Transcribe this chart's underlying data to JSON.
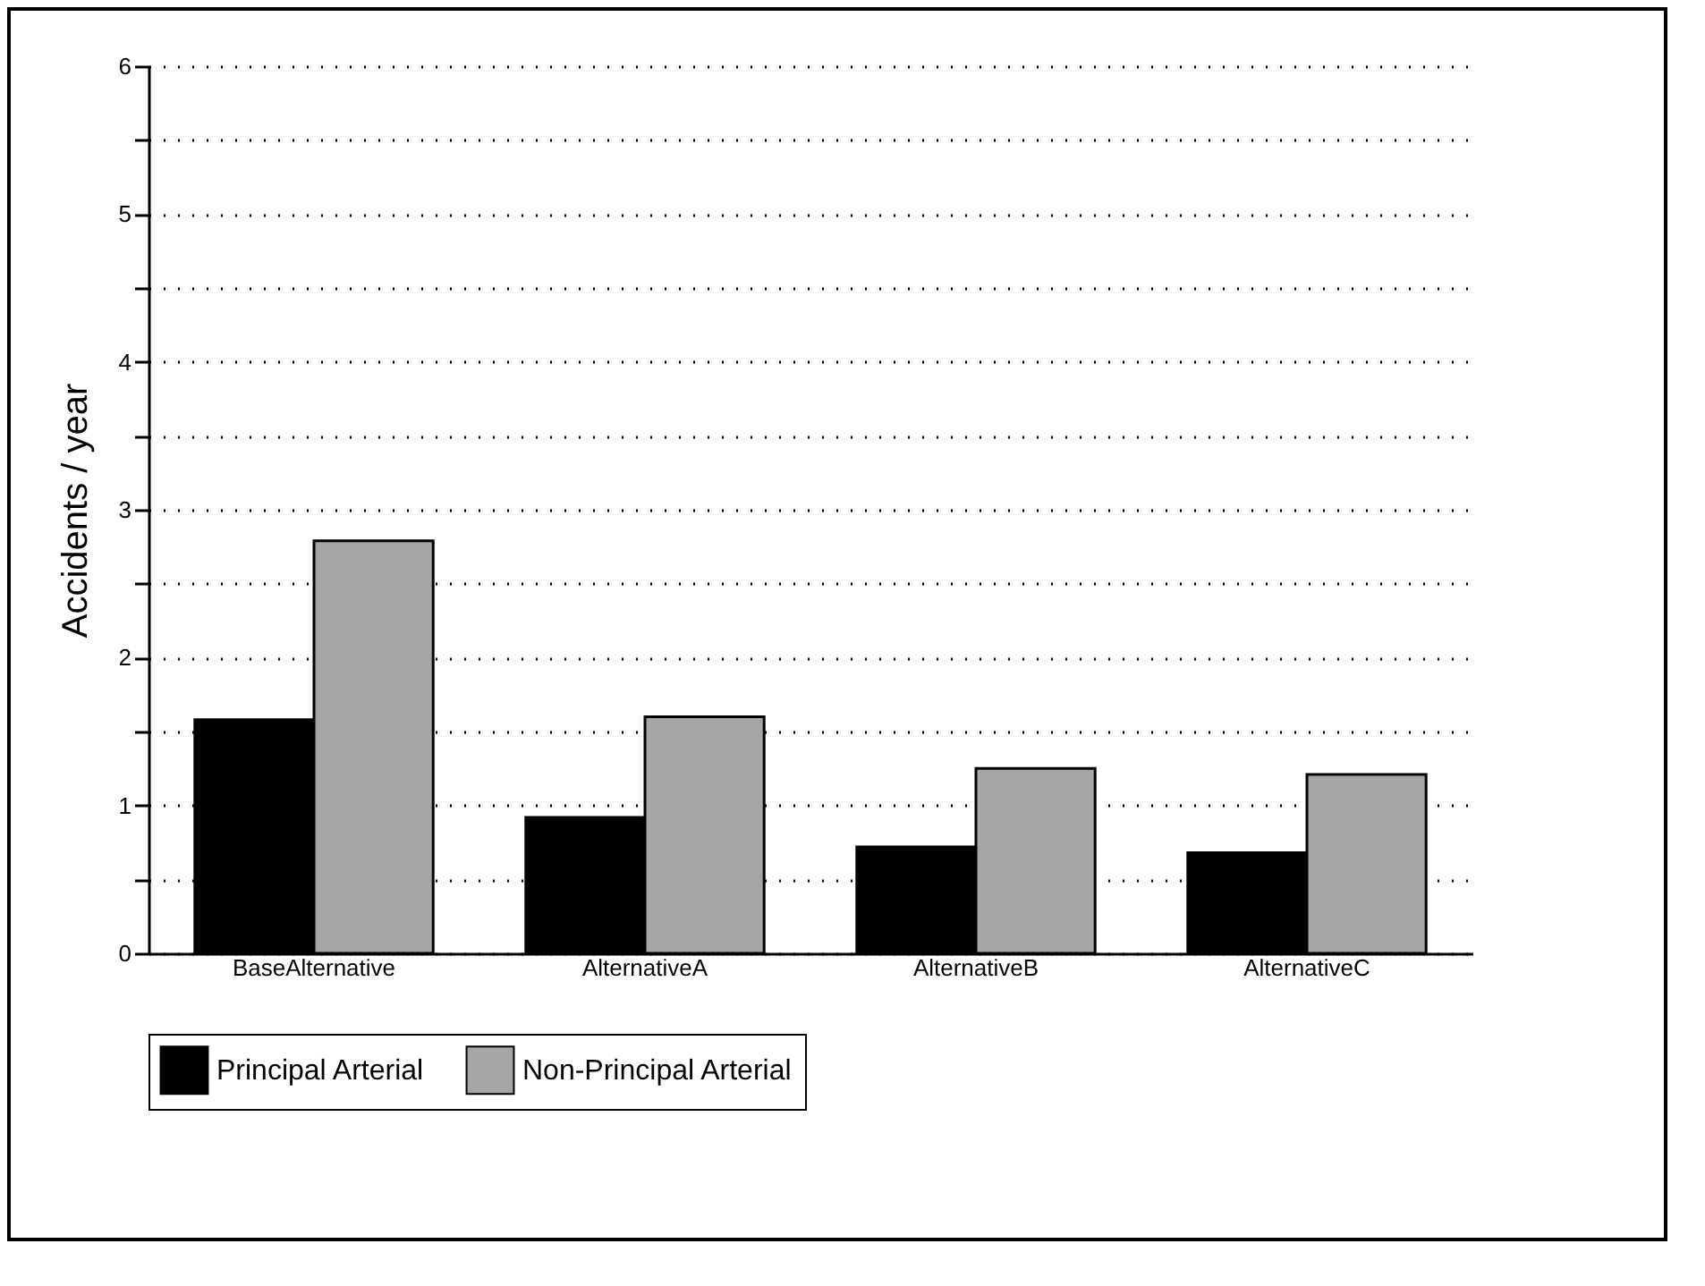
{
  "chart_data": {
    "type": "bar",
    "ylabel": "Accidents / year",
    "categories": [
      "BaseAlternative",
      "AlternativeA",
      "AlternativeB",
      "AlternativeC"
    ],
    "series": [
      {
        "name": "Principal Arterial",
        "color": "#000000",
        "values": [
          1.58,
          0.92,
          0.72,
          0.68
        ]
      },
      {
        "name": "Non-Principal Arterial",
        "color": "#a6a6a6",
        "values": [
          2.79,
          1.6,
          1.25,
          1.21
        ]
      }
    ],
    "ylim": [
      0,
      6
    ],
    "yticks": [
      0,
      {
        "value": 0.5,
        "label": null
      },
      1,
      {
        "value": 1.5,
        "label": null
      },
      2,
      {
        "value": 2.5,
        "label": null
      },
      3,
      {
        "value": 3.5,
        "label": null
      },
      4,
      {
        "value": 4.5,
        "label": null
      },
      5,
      {
        "value": 5.5,
        "label": null
      },
      6
    ],
    "grid": "y",
    "legend": "bottom"
  }
}
